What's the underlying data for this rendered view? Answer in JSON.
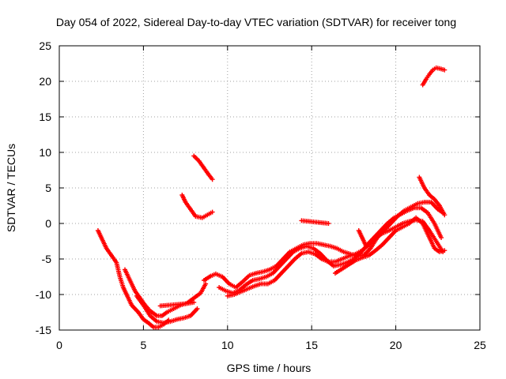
{
  "chart_data": {
    "type": "scatter",
    "title": "Day 054 of 2022, Sidereal Day-to-day VTEC variation (SDTVAR) for receiver tong",
    "xlabel": "GPS time / hours",
    "ylabel": "SDTVAR / TECUs",
    "xlim": [
      0,
      25
    ],
    "ylim": [
      -15,
      25
    ],
    "xticks": [
      "0",
      "5",
      "10",
      "15",
      "20",
      "25"
    ],
    "yticks": [
      "-15",
      "-10",
      "-5",
      "0",
      "5",
      "10",
      "15",
      "20",
      "25"
    ],
    "grid": true,
    "marker": "plus",
    "color": "#ff0000",
    "series": [
      {
        "points": [
          [
            2.3,
            -1
          ],
          [
            2.5,
            -2
          ],
          [
            2.8,
            -3.5
          ],
          [
            3.1,
            -4.5
          ],
          [
            3.4,
            -5.5
          ],
          [
            3.6,
            -7.5
          ],
          [
            3.8,
            -9
          ],
          [
            4.0,
            -10
          ],
          [
            4.3,
            -11.5
          ],
          [
            4.7,
            -12.5
          ],
          [
            5.0,
            -13.5
          ],
          [
            5.3,
            -14
          ],
          [
            5.6,
            -14.6
          ],
          [
            5.9,
            -14.6
          ],
          [
            6.2,
            -14.2
          ],
          [
            6.5,
            -13.6
          ]
        ]
      },
      {
        "points": [
          [
            3.9,
            -6.5
          ],
          [
            4.2,
            -8
          ],
          [
            4.5,
            -9.5
          ],
          [
            4.8,
            -10.5
          ],
          [
            5.1,
            -11.5
          ],
          [
            5.4,
            -12.3
          ],
          [
            5.8,
            -13
          ],
          [
            6.1,
            -13
          ],
          [
            6.4,
            -12.5
          ],
          [
            6.8,
            -12
          ],
          [
            7.2,
            -11.5
          ],
          [
            7.6,
            -11.2
          ],
          [
            8.0,
            -10.5
          ],
          [
            8.4,
            -9.8
          ],
          [
            8.7,
            -8.5
          ]
        ]
      },
      {
        "points": [
          [
            4.6,
            -10.2
          ],
          [
            5.0,
            -11.5
          ],
          [
            5.4,
            -13
          ],
          [
            5.8,
            -13.8
          ],
          [
            6.2,
            -14
          ],
          [
            6.6,
            -13.8
          ],
          [
            7.0,
            -13.5
          ],
          [
            7.4,
            -13.3
          ],
          [
            7.8,
            -13
          ],
          [
            8.2,
            -12
          ]
        ]
      },
      {
        "points": [
          [
            6.0,
            -11.6
          ],
          [
            6.5,
            -11.5
          ],
          [
            7.0,
            -11.4
          ],
          [
            7.5,
            -11.3
          ],
          [
            8.0,
            -11.1
          ]
        ]
      },
      {
        "points": [
          [
            7.3,
            4
          ],
          [
            7.5,
            3
          ],
          [
            7.8,
            2
          ],
          [
            8.1,
            1
          ],
          [
            8.5,
            0.8
          ],
          [
            8.8,
            1.2
          ],
          [
            9.1,
            1.6
          ]
        ]
      },
      {
        "points": [
          [
            8.0,
            9.5
          ],
          [
            8.3,
            8.8
          ],
          [
            8.6,
            7.8
          ],
          [
            8.9,
            6.8
          ],
          [
            9.1,
            6.2
          ]
        ]
      },
      {
        "points": [
          [
            8.6,
            -8
          ],
          [
            9.0,
            -7.4
          ],
          [
            9.3,
            -7.1
          ],
          [
            9.7,
            -7.5
          ],
          [
            10.1,
            -8.5
          ],
          [
            10.5,
            -9
          ],
          [
            10.9,
            -8.2
          ],
          [
            11.3,
            -7.3
          ],
          [
            11.7,
            -7
          ],
          [
            12.1,
            -6.8
          ],
          [
            12.5,
            -6.5
          ],
          [
            12.9,
            -6
          ],
          [
            13.3,
            -5
          ],
          [
            13.7,
            -4
          ],
          [
            14.1,
            -3.5
          ],
          [
            14.5,
            -3
          ],
          [
            14.9,
            -2.8
          ],
          [
            15.3,
            -2.8
          ],
          [
            15.7,
            -3
          ],
          [
            16.1,
            -3.2
          ],
          [
            16.5,
            -3.5
          ],
          [
            16.9,
            -4
          ],
          [
            17.3,
            -4.3
          ],
          [
            17.7,
            -4.6
          ],
          [
            18.1,
            -4.5
          ],
          [
            18.5,
            -3.5
          ],
          [
            18.9,
            -2
          ],
          [
            19.3,
            -1
          ],
          [
            19.7,
            0
          ],
          [
            20.1,
            1
          ],
          [
            20.5,
            1.8
          ],
          [
            20.9,
            2.3
          ],
          [
            21.3,
            2.8
          ],
          [
            21.7,
            3
          ],
          [
            22.1,
            3
          ],
          [
            22.5,
            2
          ],
          [
            22.8,
            1.5
          ]
        ]
      },
      {
        "points": [
          [
            9.5,
            -9
          ],
          [
            9.9,
            -9.5
          ],
          [
            10.3,
            -9.8
          ],
          [
            10.7,
            -9.4
          ],
          [
            11.1,
            -8.6
          ],
          [
            11.5,
            -8
          ],
          [
            11.9,
            -7.8
          ],
          [
            12.3,
            -7.5
          ],
          [
            12.7,
            -7
          ],
          [
            13.1,
            -6
          ],
          [
            13.5,
            -5
          ],
          [
            13.9,
            -4
          ],
          [
            14.3,
            -3.5
          ],
          [
            14.7,
            -3.2
          ],
          [
            15.1,
            -3.5
          ],
          [
            15.5,
            -4.2
          ],
          [
            15.9,
            -5.2
          ],
          [
            16.3,
            -6
          ],
          [
            16.7,
            -5.8
          ],
          [
            17.1,
            -5.5
          ],
          [
            17.5,
            -5
          ],
          [
            17.9,
            -4.2
          ],
          [
            18.3,
            -3
          ],
          [
            18.7,
            -2
          ],
          [
            19.1,
            -1
          ],
          [
            19.5,
            0
          ],
          [
            19.9,
            0.8
          ],
          [
            20.3,
            1.3
          ],
          [
            20.7,
            1.8
          ],
          [
            21.1,
            2.2
          ],
          [
            21.5,
            2.2
          ],
          [
            21.9,
            1.5
          ],
          [
            22.3,
            0
          ],
          [
            22.7,
            -2
          ]
        ]
      },
      {
        "points": [
          [
            10.0,
            -10.2
          ],
          [
            10.4,
            -10
          ],
          [
            10.8,
            -9.6
          ],
          [
            11.2,
            -9.2
          ],
          [
            11.6,
            -8.8
          ],
          [
            12.0,
            -8.5
          ],
          [
            12.4,
            -8.5
          ],
          [
            12.8,
            -8
          ],
          [
            13.2,
            -7
          ],
          [
            13.6,
            -6
          ],
          [
            14.0,
            -5
          ],
          [
            14.4,
            -4.2
          ],
          [
            14.8,
            -4
          ],
          [
            15.2,
            -4.3
          ],
          [
            15.6,
            -5
          ],
          [
            16.0,
            -5.4
          ],
          [
            16.4,
            -5.4
          ],
          [
            16.8,
            -5
          ],
          [
            17.2,
            -4.6
          ],
          [
            17.6,
            -4.3
          ],
          [
            18.0,
            -3.8
          ],
          [
            18.4,
            -3
          ],
          [
            18.8,
            -2
          ],
          [
            19.2,
            -1.4
          ],
          [
            19.6,
            -1
          ],
          [
            20.0,
            -0.5
          ],
          [
            20.4,
            0
          ],
          [
            20.8,
            0.3
          ],
          [
            21.2,
            0.5
          ],
          [
            21.6,
            0.3
          ],
          [
            22.0,
            -1
          ],
          [
            22.4,
            -2.5
          ],
          [
            22.8,
            -4
          ]
        ]
      },
      {
        "points": [
          [
            16.4,
            -7
          ],
          [
            16.8,
            -6.4
          ],
          [
            17.2,
            -5.8
          ],
          [
            17.6,
            -5.2
          ],
          [
            18.0,
            -4.8
          ],
          [
            18.4,
            -4.5
          ],
          [
            18.8,
            -3.8
          ],
          [
            19.2,
            -3
          ],
          [
            19.6,
            -2
          ],
          [
            20.0,
            -1
          ],
          [
            20.4,
            -0.5
          ],
          [
            20.8,
            0
          ],
          [
            21.2,
            0.8
          ],
          [
            21.6,
            0
          ],
          [
            22.0,
            -2
          ],
          [
            22.3,
            -3.5
          ],
          [
            22.6,
            -4
          ],
          [
            22.9,
            -3.8
          ]
        ]
      },
      {
        "points": [
          [
            14.4,
            0.4
          ],
          [
            14.8,
            0.3
          ],
          [
            15.2,
            0.2
          ],
          [
            15.6,
            0.1
          ],
          [
            16.0,
            0
          ]
        ]
      },
      {
        "points": [
          [
            17.8,
            -1
          ],
          [
            18.0,
            -2
          ],
          [
            18.2,
            -3
          ]
        ]
      },
      {
        "points": [
          [
            21.4,
            6.5
          ],
          [
            21.7,
            5
          ],
          [
            22.0,
            4
          ],
          [
            22.3,
            3.4
          ],
          [
            22.6,
            2.5
          ],
          [
            22.9,
            1.2
          ]
        ]
      },
      {
        "points": [
          [
            21.6,
            19.5
          ],
          [
            21.8,
            20.3
          ],
          [
            22.0,
            21
          ],
          [
            22.2,
            21.6
          ],
          [
            22.4,
            21.9
          ],
          [
            22.6,
            21.8
          ],
          [
            22.9,
            21.6
          ]
        ]
      }
    ]
  }
}
